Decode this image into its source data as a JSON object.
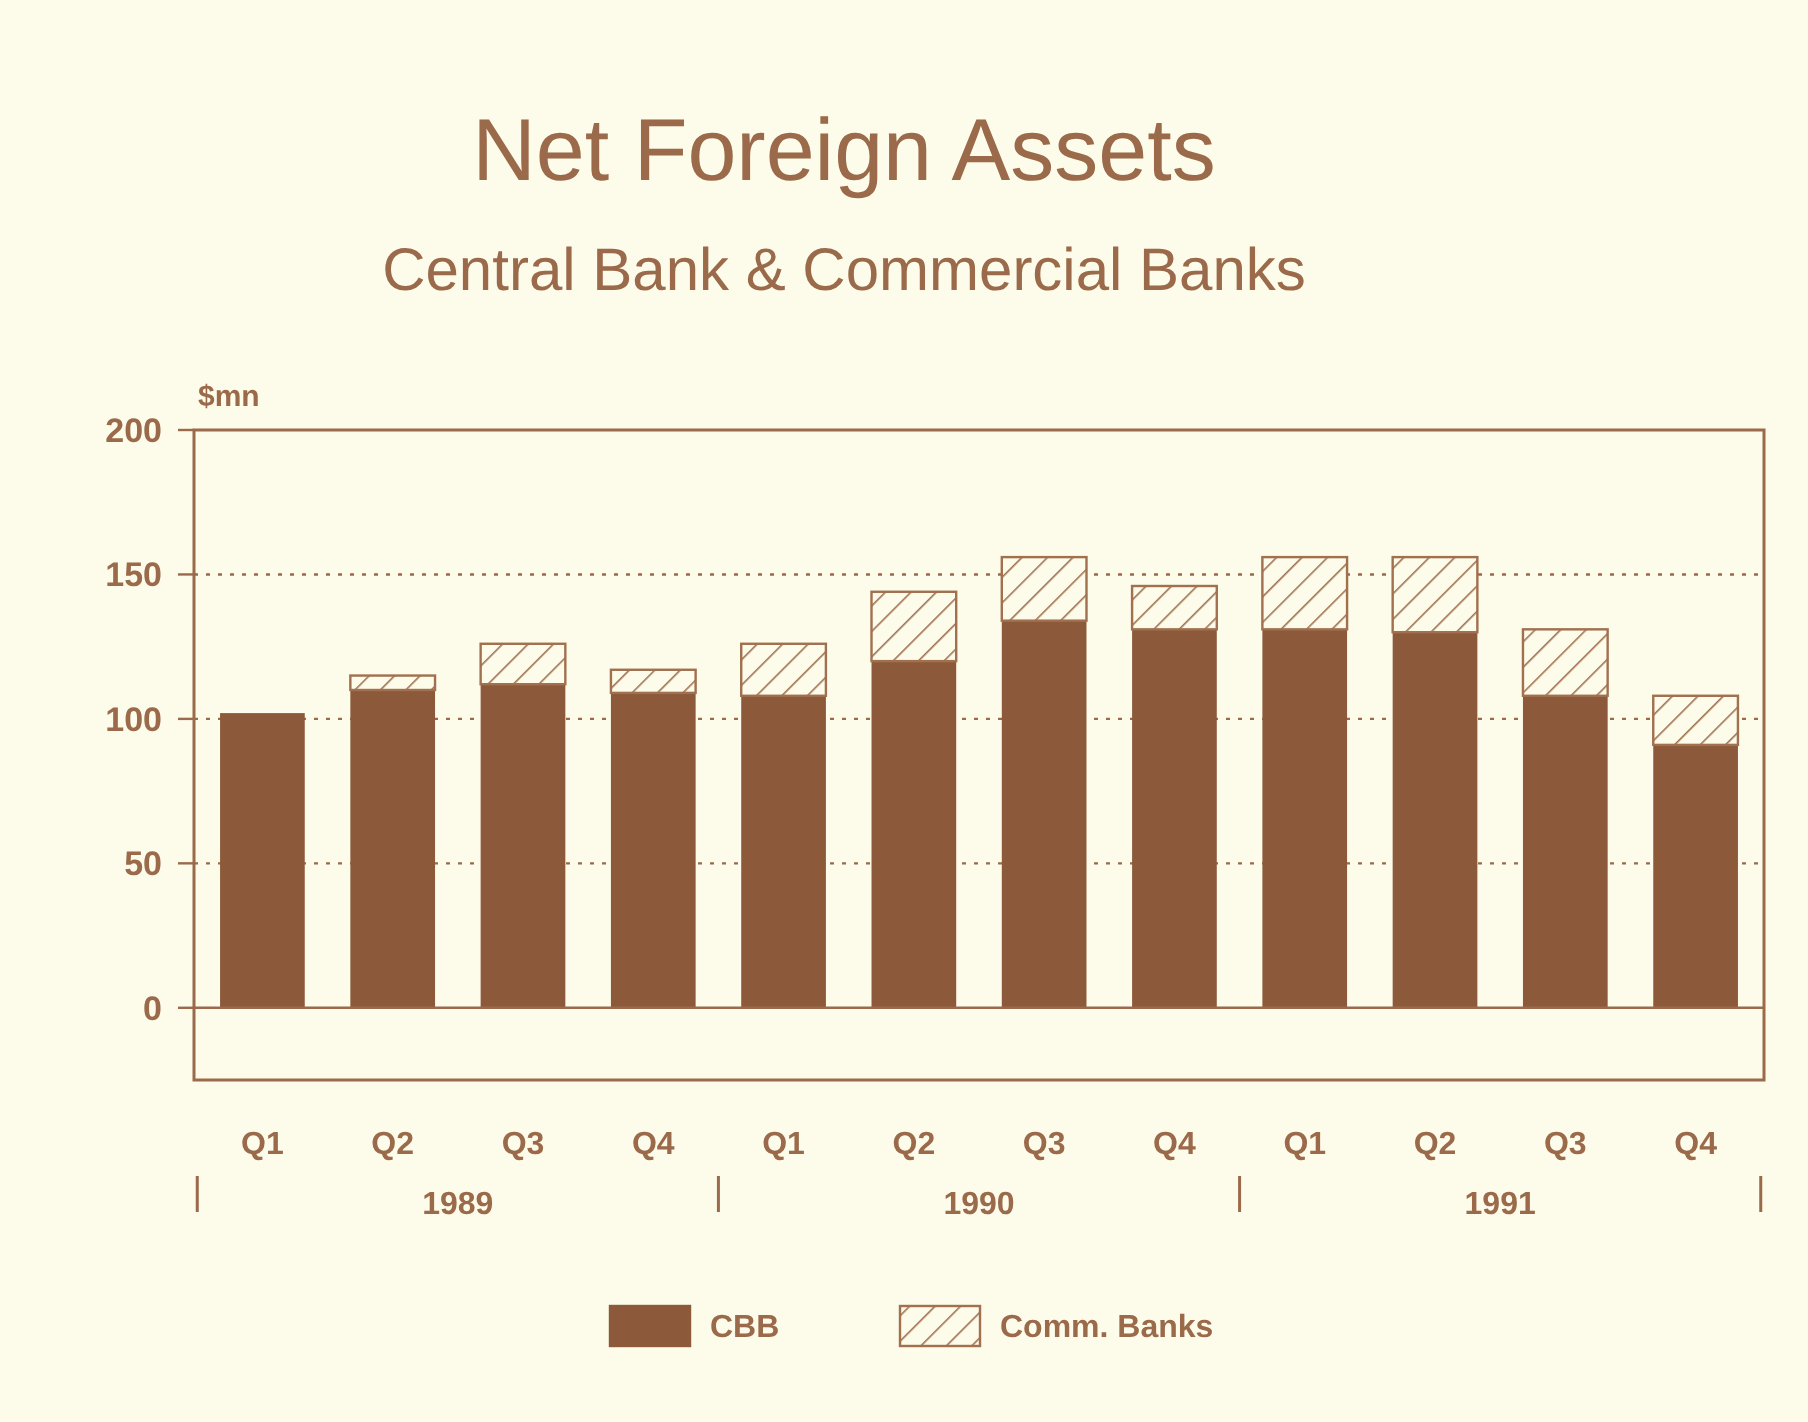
{
  "chart_data": {
    "type": "bar",
    "title": "Net Foreign Assets",
    "subtitle": "Central Bank & Commercial Banks",
    "ylabel": "$mn",
    "categories": [
      "Q1",
      "Q2",
      "Q3",
      "Q4",
      "Q1",
      "Q2",
      "Q3",
      "Q4",
      "Q1",
      "Q2",
      "Q3",
      "Q4"
    ],
    "series": [
      {
        "name": "CBB",
        "color": "#8c5a3a",
        "values": [
          102,
          110,
          112,
          109,
          108,
          120,
          134,
          131,
          131,
          130,
          108,
          91
        ]
      },
      {
        "name": "Comm. Banks",
        "color": "#a0704f",
        "values": [
          0,
          5,
          14,
          8,
          18,
          24,
          22,
          15,
          25,
          26,
          23,
          17
        ]
      }
    ],
    "ref_lines": [
      {
        "axis": "y",
        "value": 0
      }
    ],
    "stacked": true,
    "ylim": [
      -25,
      200
    ],
    "yticks": [
      0,
      50,
      100,
      150,
      200
    ],
    "grid": "y",
    "legend": "bottom",
    "annotations": [
      "1989",
      "1990",
      "1991"
    ]
  }
}
